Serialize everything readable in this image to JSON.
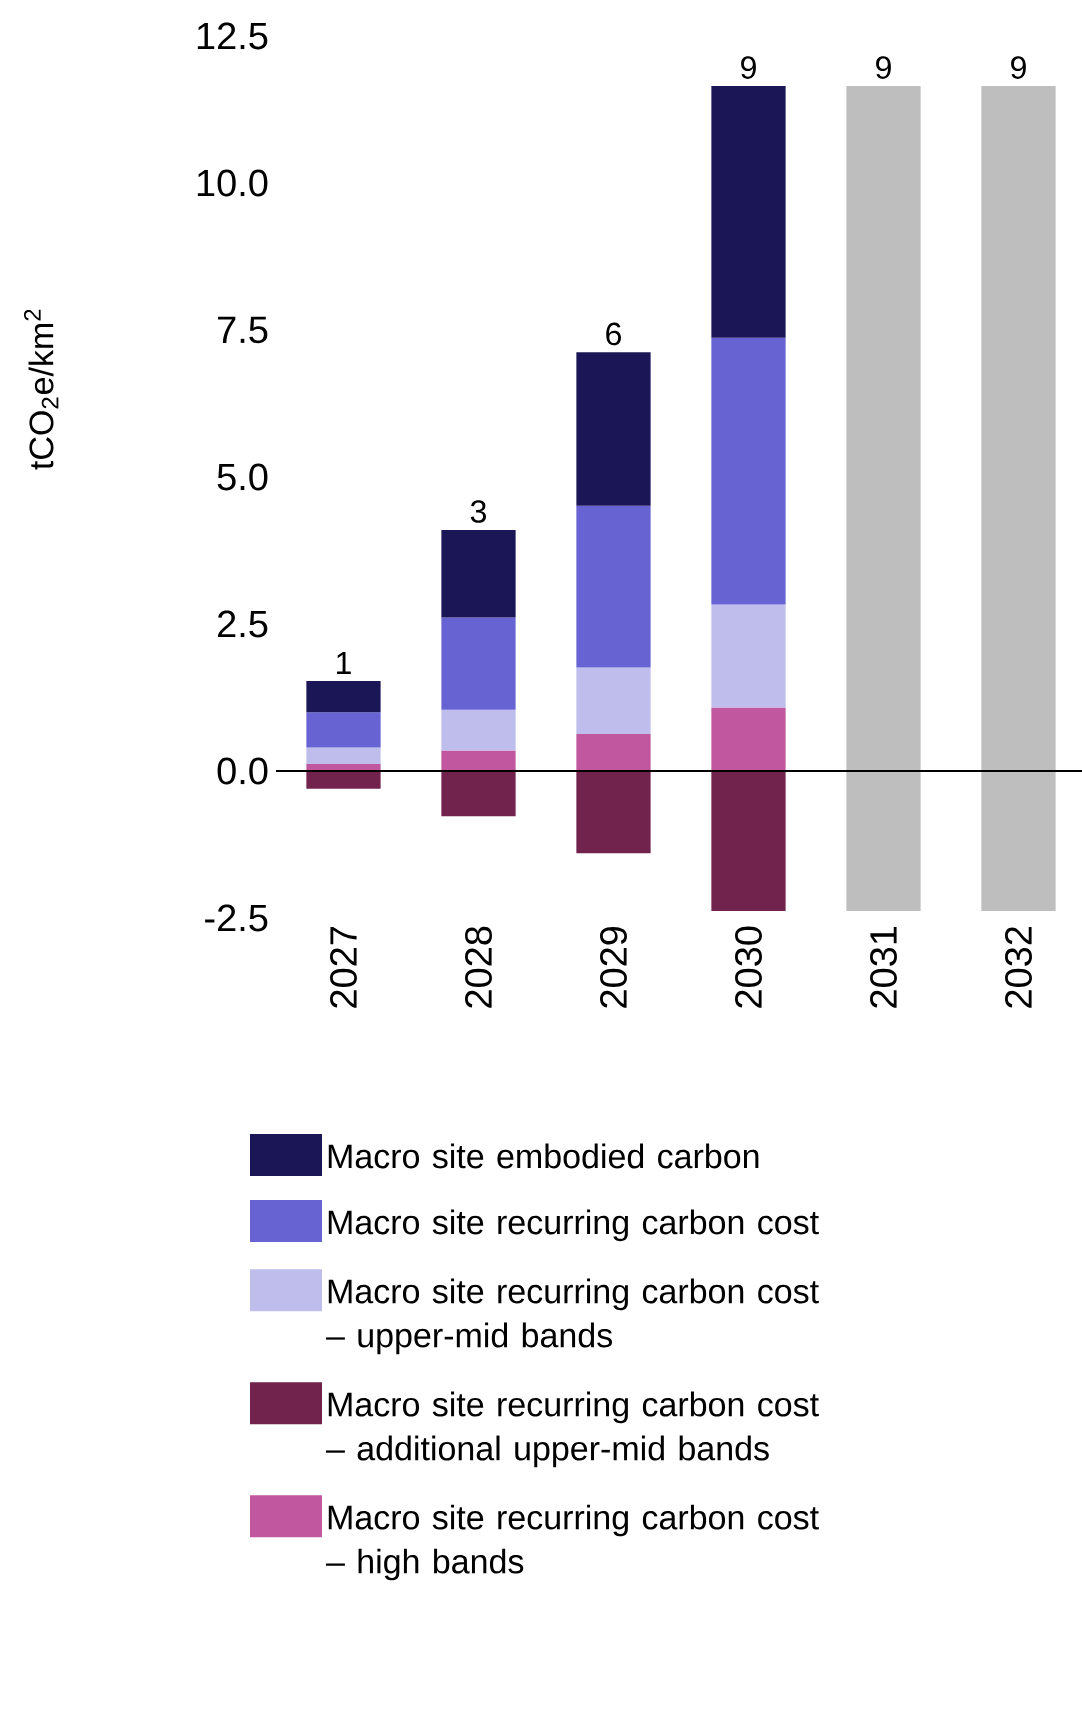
{
  "chart_data": {
    "type": "bar",
    "stacked": true,
    "ylabel": "tCO$_{2}$e/km$^{2}$",
    "categories": [
      "2027",
      "2028",
      "2029",
      "2030",
      "2031",
      "2032"
    ],
    "ylim": [
      -2.5,
      12.5
    ],
    "yticks": [
      {
        "value": -2.5,
        "label": "-2.5"
      },
      {
        "value": 0,
        "label": "0.0"
      },
      {
        "value": 2.5,
        "label": "2.5"
      },
      {
        "value": 5,
        "label": "5.0"
      },
      {
        "value": 7.5,
        "label": "7.5"
      },
      {
        "value": 10,
        "label": "10.0"
      },
      {
        "value": 12.5,
        "label": "12.5"
      }
    ],
    "legend": "bottom",
    "series": [
      {
        "name": "Macro site recurring carbon cost – high bands",
        "color": "#c1579f",
        "values": [
          0.12,
          0.35,
          0.63,
          1.08,
          null,
          null
        ]
      },
      {
        "name": "Macro site recurring carbon cost – additional upper-mid bands",
        "color": "#71224d",
        "values": [
          -0.3,
          -0.77,
          -1.4,
          -2.38,
          null,
          null
        ]
      },
      {
        "name": "Macro site recurring carbon cost – upper-mid bands",
        "color": "#bfbdec",
        "values": [
          0.28,
          0.69,
          1.13,
          1.75,
          null,
          null
        ]
      },
      {
        "name": "Macro site recurring carbon cost",
        "color": "#6763d3",
        "values": [
          0.6,
          1.57,
          2.75,
          4.54,
          null,
          null
        ]
      },
      {
        "name": "Macro site embodied carbon",
        "color": "#1b1757",
        "values": [
          0.53,
          1.49,
          2.61,
          4.28,
          null,
          null
        ]
      },
      {
        "color": "#bebebe",
        "values": [
          null,
          null,
          null,
          null,
          11.65,
          11.65
        ]
      },
      {
        "color": "#bebebe",
        "values": [
          null,
          null,
          null,
          null,
          -2.38,
          -2.38
        ]
      }
    ],
    "annotations": [
      {
        "text": "1",
        "x": "2027",
        "y": 1.53
      },
      {
        "text": "3",
        "x": "2028",
        "y": 4.1
      },
      {
        "text": "6",
        "x": "2029",
        "y": 7.12
      },
      {
        "text": "9",
        "x": "2030",
        "y": 11.65
      },
      {
        "text": "9",
        "x": "2031",
        "y": 11.65
      },
      {
        "text": "9",
        "x": "2032",
        "y": 11.65
      }
    ]
  }
}
